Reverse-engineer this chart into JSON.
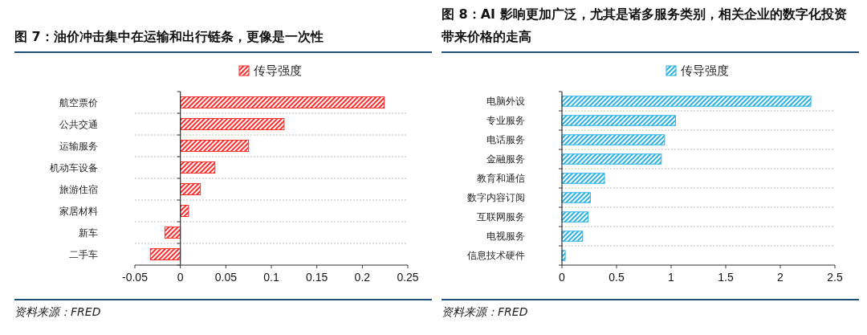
{
  "chart_data": [
    {
      "type": "bar",
      "orientation": "horizontal",
      "title": "图 7：油价冲击集中在运输和出行链条，更像是一次性",
      "categories": [
        "航空票价",
        "公共交通",
        "运输服务",
        "机动车设备",
        "旅游住宿",
        "家居材料",
        "新车",
        "二手车"
      ],
      "series": [
        {
          "name": "传导强度",
          "color": "#ff2a2a",
          "values": [
            0.224,
            0.114,
            0.075,
            0.038,
            0.022,
            0.009,
            -0.017,
            -0.033
          ]
        }
      ],
      "xlim": [
        -0.05,
        0.25
      ],
      "xticks": [
        {
          "value": -0.05,
          "label": "-0.05"
        },
        0,
        0.05,
        0.1,
        0.15,
        0.2,
        0.25
      ],
      "grid": "y",
      "legend": "top",
      "annotations": [
        "资料来源：FRED"
      ]
    },
    {
      "type": "bar",
      "orientation": "horizontal",
      "title": "图 8：AI 影响更加广泛，尤其是诸多服务类别，相关企业的数字化投资带来价格的走高",
      "categories": [
        "电脑外设",
        "专业服务",
        "电话服务",
        "金融服务",
        "教育和通信",
        "数字内容订阅",
        "互联网服务",
        "电视服务",
        "信息技术硬件"
      ],
      "series": [
        {
          "name": "传导强度",
          "color": "#2ab0e0",
          "values": [
            2.28,
            1.04,
            0.94,
            0.91,
            0.39,
            0.26,
            0.24,
            0.19,
            0.03
          ]
        }
      ],
      "xlim": [
        0,
        2.5
      ],
      "xticks": [
        0,
        0.5,
        1,
        1.5,
        2,
        2.5
      ],
      "grid": "y",
      "legend": "top",
      "annotations": [
        "资料来源：FRED"
      ]
    }
  ]
}
